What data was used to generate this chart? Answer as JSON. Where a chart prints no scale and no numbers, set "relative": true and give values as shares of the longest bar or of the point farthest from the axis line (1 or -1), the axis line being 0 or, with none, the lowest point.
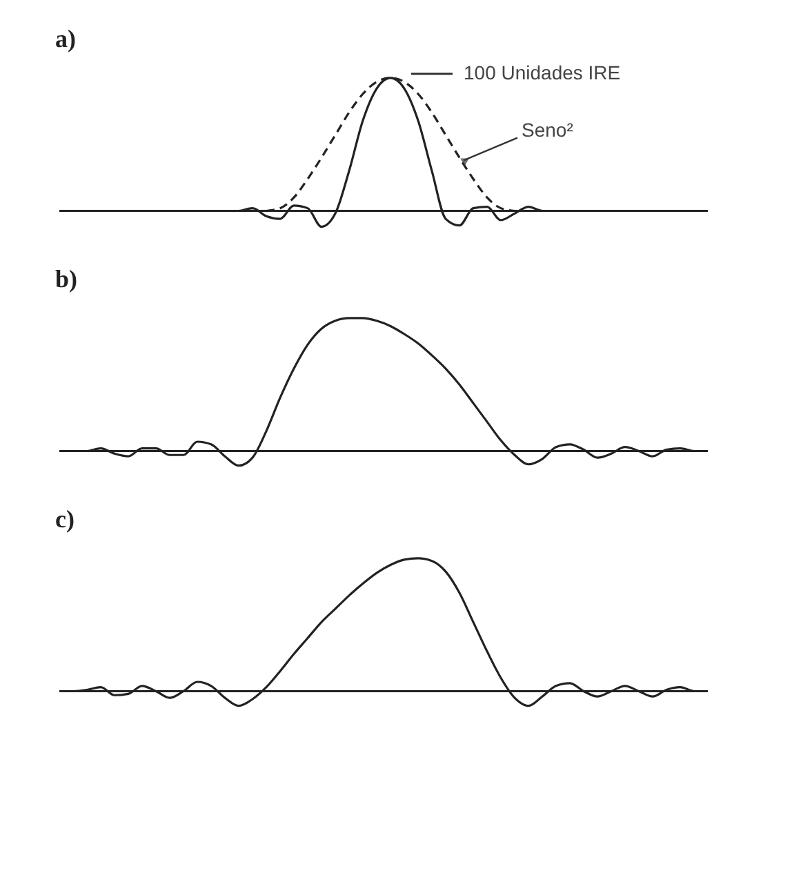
{
  "chart_data": [
    {
      "type": "line",
      "title": "a)",
      "relative": true,
      "categories": [
        null,
        null,
        null,
        null,
        null,
        null,
        null,
        null,
        null,
        null,
        null,
        null,
        null,
        null,
        null,
        null,
        null,
        null,
        null,
        null,
        null,
        null,
        null,
        null,
        null,
        null,
        null,
        null,
        null,
        null,
        null,
        null,
        null,
        null,
        null,
        null,
        null,
        null,
        null,
        null,
        null,
        null,
        null,
        null,
        null,
        null,
        null,
        null
      ],
      "annotations": [
        "100 Unidades IRE"
      ],
      "series": [
        {
          "color": "#222222",
          "line_style": "solid",
          "values": [
            0,
            0,
            0,
            0,
            0,
            0,
            0,
            0,
            0,
            0,
            0,
            0,
            0,
            0,
            0.02,
            -0.04,
            -0.06,
            0.04,
            0.02,
            -0.12,
            -0.02,
            0.3,
            0.68,
            0.92,
            1,
            0.92,
            0.68,
            0.3,
            -0.06,
            -0.11,
            0.02,
            0.03,
            -0.07,
            -0.02,
            0.03,
            0,
            0,
            0,
            0,
            0,
            0,
            0,
            0,
            0,
            0,
            0,
            0,
            0
          ]
        },
        {
          "name": "Seno²",
          "color": "#222222",
          "line_style": "dashed",
          "values": [
            null,
            null,
            null,
            null,
            null,
            null,
            null,
            null,
            null,
            null,
            null,
            null,
            null,
            null,
            null,
            0,
            0.02,
            0.1,
            0.24,
            0.4,
            0.57,
            0.74,
            0.88,
            0.97,
            1,
            0.97,
            0.88,
            0.74,
            0.57,
            0.4,
            0.24,
            0.1,
            0.02,
            0,
            null,
            null,
            null,
            null,
            null,
            null,
            null,
            null,
            null,
            null,
            null,
            null,
            null,
            null
          ]
        }
      ]
    },
    {
      "type": "line",
      "title": "b)",
      "relative": true,
      "categories": [
        null,
        null,
        null,
        null,
        null,
        null,
        null,
        null,
        null,
        null,
        null,
        null,
        null,
        null,
        null,
        null,
        null,
        null,
        null,
        null,
        null,
        null,
        null,
        null,
        null,
        null,
        null,
        null,
        null,
        null,
        null,
        null,
        null,
        null,
        null,
        null,
        null,
        null,
        null,
        null,
        null,
        null,
        null,
        null,
        null,
        null,
        null,
        null
      ],
      "series": [
        {
          "color": "#222222",
          "line_style": "solid",
          "values": [
            0,
            0,
            0,
            0.02,
            -0.02,
            -0.04,
            0.02,
            0.02,
            -0.03,
            -0.03,
            0.07,
            0.05,
            -0.04,
            -0.11,
            -0.05,
            0.15,
            0.4,
            0.62,
            0.8,
            0.92,
            0.98,
            1,
            1,
            0.98,
            0.94,
            0.88,
            0.81,
            0.72,
            0.62,
            0.5,
            0.36,
            0.22,
            0.08,
            -0.03,
            -0.1,
            -0.06,
            0.03,
            0.05,
            0.01,
            -0.05,
            -0.02,
            0.03,
            0,
            -0.04,
            0.01,
            0.02,
            0,
            0
          ]
        }
      ]
    },
    {
      "type": "line",
      "title": "c)",
      "relative": true,
      "categories": [
        null,
        null,
        null,
        null,
        null,
        null,
        null,
        null,
        null,
        null,
        null,
        null,
        null,
        null,
        null,
        null,
        null,
        null,
        null,
        null,
        null,
        null,
        null,
        null,
        null,
        null,
        null,
        null,
        null,
        null,
        null,
        null,
        null,
        null,
        null,
        null,
        null,
        null,
        null,
        null,
        null,
        null,
        null,
        null,
        null,
        null,
        null,
        null
      ],
      "series": [
        {
          "color": "#222222",
          "line_style": "solid",
          "values": [
            0,
            0,
            0.01,
            0.03,
            -0.03,
            -0.02,
            0.04,
            0,
            -0.05,
            0,
            0.07,
            0.04,
            -0.05,
            -0.11,
            -0.06,
            0.03,
            0.15,
            0.28,
            0.4,
            0.52,
            0.62,
            0.72,
            0.81,
            0.89,
            0.95,
            0.99,
            1,
            0.98,
            0.9,
            0.74,
            0.52,
            0.3,
            0.1,
            -0.05,
            -0.11,
            -0.04,
            0.04,
            0.06,
            0,
            -0.04,
            0,
            0.04,
            0,
            -0.04,
            0.01,
            0.03,
            0,
            0
          ]
        }
      ]
    }
  ]
}
